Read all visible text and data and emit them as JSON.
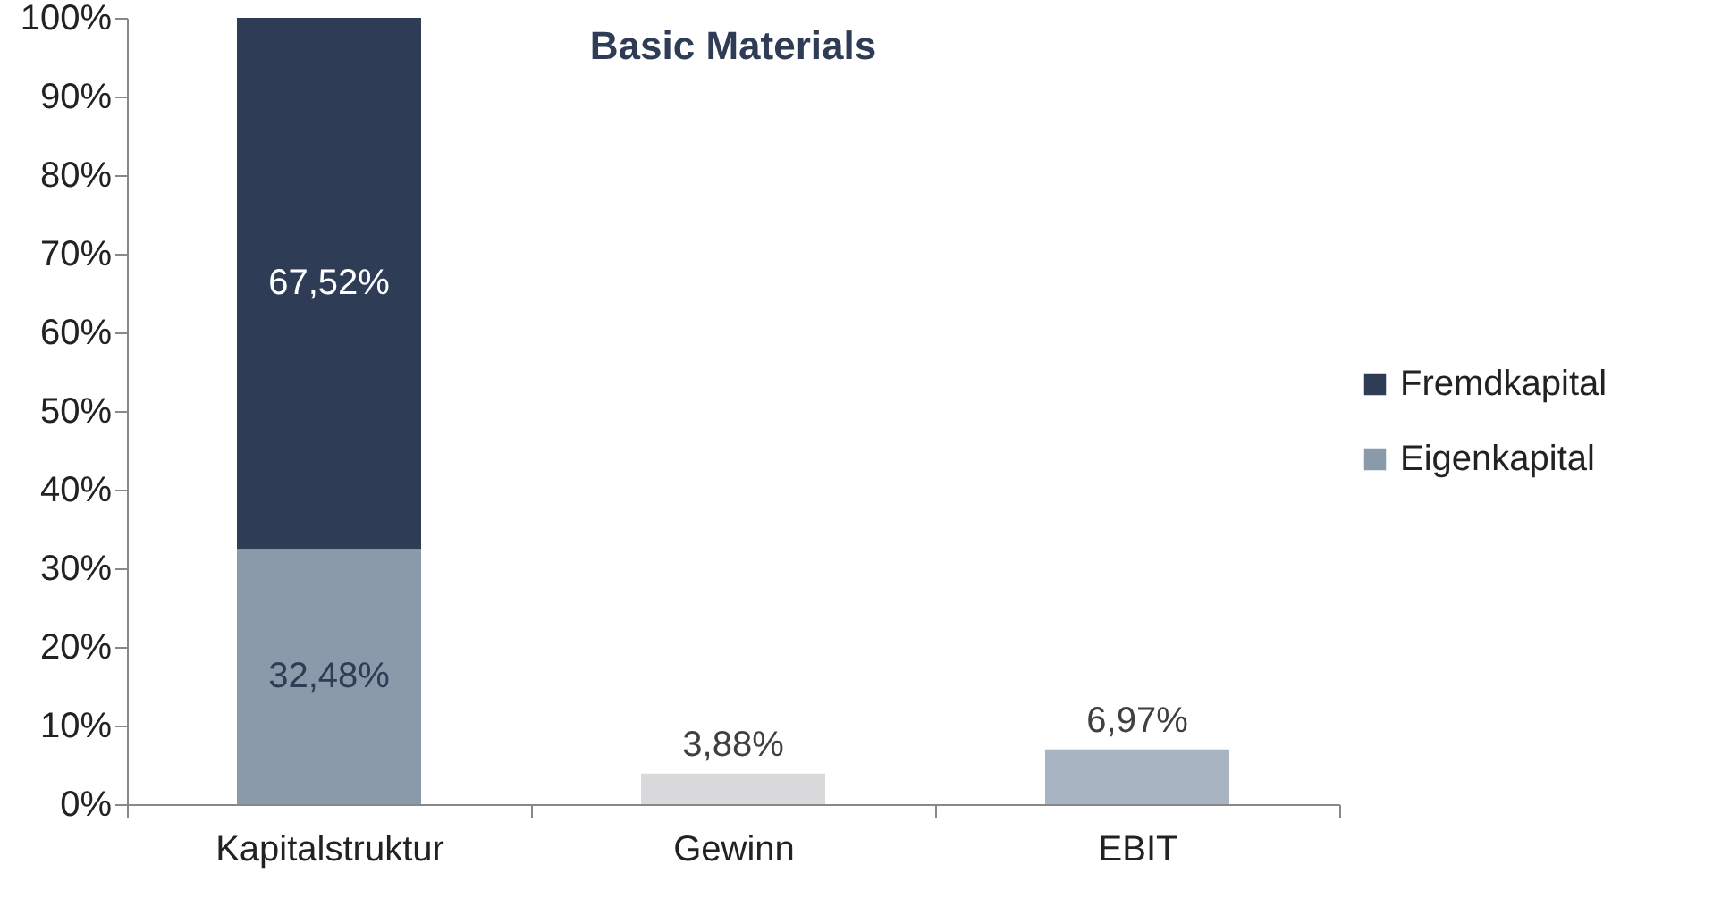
{
  "chart_data": {
    "type": "bar",
    "title": "Basic Materials",
    "stacked": true,
    "categories": [
      "Kapitalstruktur",
      "Gewinn",
      "EBIT"
    ],
    "series": [
      {
        "name": "Eigenkapital",
        "color": "#8a9aab",
        "values": [
          32.48,
          null,
          null
        ],
        "value_labels": [
          "32,48%",
          null,
          null
        ]
      },
      {
        "name": "Fremdkapital",
        "color": "#2e3c55",
        "values": [
          67.52,
          null,
          null
        ],
        "value_labels": [
          "67,52%",
          null,
          null
        ]
      },
      {
        "colors": [
          null,
          "#d9d9db",
          "#a9b4c2"
        ],
        "values": [
          null,
          3.88,
          6.97
        ],
        "value_labels": [
          null,
          "3,88%",
          "6,97%"
        ]
      }
    ],
    "ylim": [
      0,
      100
    ],
    "yticks": [
      {
        "value": 0,
        "label": "0%"
      },
      {
        "value": 10,
        "label": "10%"
      },
      {
        "value": 20,
        "label": "20%"
      },
      {
        "value": 30,
        "label": "30%"
      },
      {
        "value": 40,
        "label": "40%"
      },
      {
        "value": 50,
        "label": "50%"
      },
      {
        "value": 60,
        "label": "60%"
      },
      {
        "value": 70,
        "label": "70%"
      },
      {
        "value": 80,
        "label": "80%"
      },
      {
        "value": 90,
        "label": "90%"
      },
      {
        "value": 100,
        "label": "100%"
      }
    ],
    "grid": false,
    "legend": "right"
  }
}
